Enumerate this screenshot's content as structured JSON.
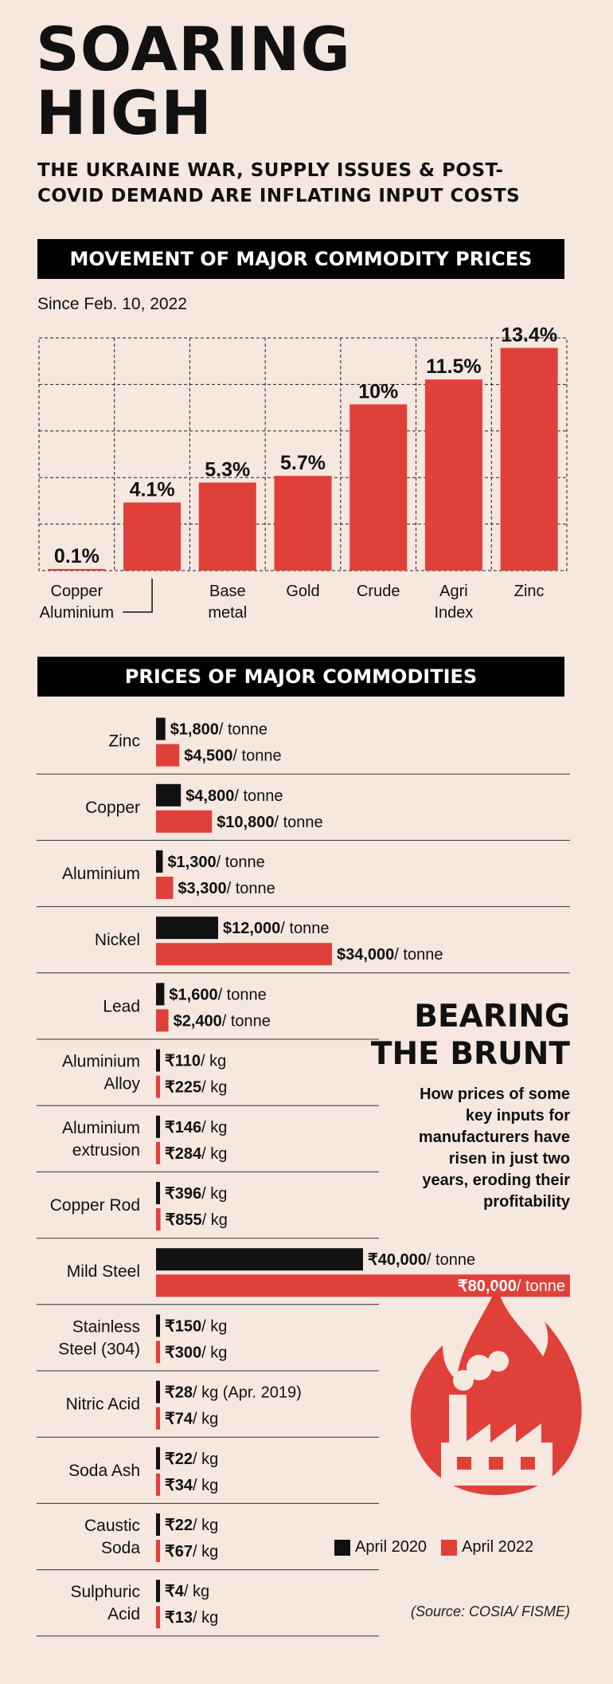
{
  "title_line1": "SOARING",
  "title_line2": "HIGH",
  "subtitle_line1": "THE UKRAINE WAR, SUPPLY ISSUES & POST-",
  "subtitle_line2": "COVID DEMAND ARE INFLATING INPUT COSTS",
  "colors": {
    "april_2020": "#111111",
    "april_2022": "#e0403a",
    "background": "#f6e7df"
  },
  "chart_data": [
    {
      "type": "bar",
      "title": "MOVEMENT OF MAJOR COMMODITY PRICES",
      "subtitle": "Since Feb. 10, 2022",
      "unit": "%",
      "ylim": [
        0,
        14
      ],
      "grid": true,
      "categories": [
        {
          "lines": [
            "Copper",
            "Aluminium"
          ],
          "value": 0.1,
          "label": "0.1%"
        },
        {
          "lines": [],
          "value": 4.1,
          "label": "4.1%"
        },
        {
          "lines": [
            "Base",
            "metal"
          ],
          "value": 5.3,
          "label": "5.3%"
        },
        {
          "lines": [
            "Gold"
          ],
          "value": 5.7,
          "label": "5.7%"
        },
        {
          "lines": [
            "Crude"
          ],
          "value": 10,
          "label": "10%"
        },
        {
          "lines": [
            "Agri",
            "Index"
          ],
          "value": 11.5,
          "label": "11.5%"
        },
        {
          "lines": [
            "Zinc"
          ],
          "value": 13.4,
          "label": "13.4%"
        }
      ]
    },
    {
      "type": "bar",
      "orientation": "horizontal",
      "title": "PRICES OF MAJOR COMMODITIES",
      "series": [
        {
          "name": "April 2020",
          "color": "#111111"
        },
        {
          "name": "April 2022",
          "color": "#e0403a"
        }
      ],
      "items": [
        {
          "lines": [
            "Zinc"
          ],
          "values": [
            1800,
            4500
          ],
          "labels": [
            "$1,800",
            "$4,500"
          ],
          "units": [
            "/ tonne",
            "/ tonne"
          ]
        },
        {
          "lines": [
            "Copper"
          ],
          "values": [
            4800,
            10800
          ],
          "labels": [
            "$4,800",
            "$10,800"
          ],
          "units": [
            "/ tonne",
            "/ tonne"
          ]
        },
        {
          "lines": [
            "Aluminium"
          ],
          "values": [
            1300,
            3300
          ],
          "labels": [
            "$1,300",
            "$3,300"
          ],
          "units": [
            "/ tonne",
            "/ tonne"
          ]
        },
        {
          "lines": [
            "Nickel"
          ],
          "values": [
            12000,
            34000
          ],
          "labels": [
            "$12,000",
            "$34,000"
          ],
          "units": [
            "/ tonne",
            "/ tonne"
          ]
        },
        {
          "lines": [
            "Lead"
          ],
          "values": [
            1600,
            2400
          ],
          "labels": [
            "$1,600",
            "$2,400"
          ],
          "units": [
            "/ tonne",
            "/ tonne"
          ]
        },
        {
          "lines": [
            "Aluminium",
            "Alloy"
          ],
          "values": [
            110,
            225
          ],
          "labels": [
            "₹110",
            "₹225"
          ],
          "units": [
            "/ kg",
            "/ kg"
          ]
        },
        {
          "lines": [
            "Aluminium",
            "extrusion"
          ],
          "values": [
            146,
            284
          ],
          "labels": [
            "₹146",
            "₹284"
          ],
          "units": [
            "/ kg",
            "/ kg"
          ]
        },
        {
          "lines": [
            "Copper Rod"
          ],
          "values": [
            396,
            855
          ],
          "labels": [
            "₹396",
            "₹855"
          ],
          "units": [
            "/ kg",
            "/ kg"
          ]
        },
        {
          "lines": [
            "Mild Steel"
          ],
          "values": [
            40000,
            80000
          ],
          "labels": [
            "₹40,000",
            "₹80,000"
          ],
          "units": [
            "/ tonne",
            "/ tonne"
          ]
        },
        {
          "lines": [
            "Stainless",
            "Steel (304)"
          ],
          "values": [
            150,
            300
          ],
          "labels": [
            "₹150",
            "₹300"
          ],
          "units": [
            "/ kg",
            "/ kg"
          ]
        },
        {
          "lines": [
            "Nitric Acid"
          ],
          "values": [
            28,
            74
          ],
          "labels": [
            "₹28",
            "₹74"
          ],
          "units": [
            "/ kg (Apr. 2019)",
            "/ kg"
          ]
        },
        {
          "lines": [
            "Soda Ash"
          ],
          "values": [
            22,
            34
          ],
          "labels": [
            "₹22",
            "₹34"
          ],
          "units": [
            "/ kg",
            "/ kg"
          ]
        },
        {
          "lines": [
            "Caustic",
            "Soda"
          ],
          "values": [
            22,
            67
          ],
          "labels": [
            "₹22",
            "₹67"
          ],
          "units": [
            "/ kg",
            "/ kg"
          ]
        },
        {
          "lines": [
            "Sulphuric",
            "Acid"
          ],
          "values": [
            4,
            13
          ],
          "labels": [
            "₹4",
            "₹13"
          ],
          "units": [
            "/ kg",
            "/ kg"
          ]
        }
      ]
    }
  ],
  "sidebar": {
    "title_line1": "BEARING",
    "title_line2": "THE BRUNT",
    "description": "How prices of some key inputs for manufacturers have risen in just two years, eroding their profitability",
    "icon": "factory-fire-icon"
  },
  "legend": {
    "items": [
      "April 2020",
      "April 2022"
    ]
  },
  "source": "(Source: COSIA/ FISME)"
}
